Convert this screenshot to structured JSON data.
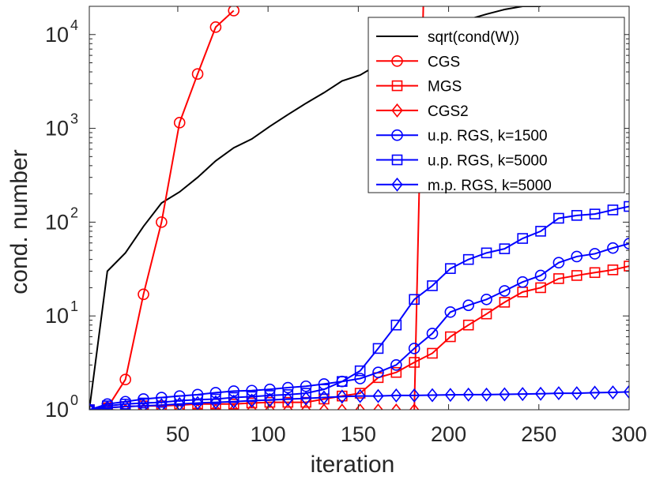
{
  "chart_data": {
    "type": "line",
    "xlabel": "iteration",
    "ylabel": "cond. number",
    "xlim": [
      1,
      300
    ],
    "ylim": [
      1,
      20000
    ],
    "y_scale": "log",
    "x_ticks": [
      50,
      100,
      150,
      200,
      250,
      300
    ],
    "y_ticks": [
      {
        "value": 1,
        "base": "10",
        "exp": "0"
      },
      {
        "value": 10,
        "base": "10",
        "exp": "1"
      },
      {
        "value": 100,
        "base": "10",
        "exp": "2"
      },
      {
        "value": 1000,
        "base": "10",
        "exp": "3"
      },
      {
        "value": 10000,
        "base": "10",
        "exp": "4"
      }
    ],
    "grid": false,
    "legend_position": "top-right",
    "series": [
      {
        "name": "sqrt(cond(W))",
        "color": "#000000",
        "marker": "none",
        "x": [
          1,
          11,
          21,
          31,
          41,
          51,
          61,
          71,
          81,
          91,
          101,
          111,
          121,
          131,
          141,
          151,
          161,
          171,
          181,
          191,
          201,
          211,
          221,
          231,
          241,
          251
        ],
        "y": [
          1,
          30,
          47,
          90,
          160,
          210,
          300,
          450,
          620,
          770,
          1050,
          1400,
          1850,
          2400,
          3200,
          3700,
          4800,
          6200,
          7300,
          10000,
          12000,
          14500,
          16500,
          18500,
          20000,
          20000
        ]
      },
      {
        "name": "CGS",
        "color": "#ff0000",
        "marker": "circle",
        "x": [
          1,
          11,
          21,
          31,
          41,
          51,
          61,
          71,
          81
        ],
        "y": [
          1,
          1.05,
          2.1,
          17,
          100,
          1150,
          3800,
          12000,
          18000
        ]
      },
      {
        "name": "MGS",
        "color": "#ff0000",
        "marker": "square",
        "x": [
          1,
          11,
          21,
          31,
          41,
          51,
          61,
          71,
          81,
          91,
          101,
          111,
          121,
          131,
          141,
          151,
          161,
          171,
          181,
          191,
          201,
          211,
          221,
          231,
          241,
          251,
          261,
          271,
          281,
          291,
          300
        ],
        "y": [
          1,
          1.05,
          1.08,
          1.1,
          1.1,
          1.12,
          1.15,
          1.15,
          1.15,
          1.18,
          1.2,
          1.2,
          1.2,
          1.3,
          1.4,
          1.5,
          2.2,
          2.5,
          3.2,
          4,
          6,
          8,
          10.5,
          14,
          18,
          20,
          25,
          27,
          29,
          31,
          34
        ]
      },
      {
        "name": "CGS2",
        "color": "#ff0000",
        "marker": "diamond",
        "x": [
          1,
          11,
          21,
          31,
          41,
          51,
          61,
          71,
          81,
          91,
          101,
          111,
          121,
          131,
          141,
          151,
          161,
          171,
          181,
          186
        ],
        "y": [
          1,
          1,
          0.98,
          0.98,
          0.98,
          0.98,
          0.98,
          0.98,
          0.98,
          0.98,
          0.98,
          0.98,
          0.98,
          0.98,
          0.98,
          0.98,
          0.98,
          0.98,
          0.98,
          20000
        ]
      },
      {
        "name": "u.p. RGS, k=1500",
        "color": "#0000ff",
        "marker": "circle",
        "x": [
          1,
          11,
          21,
          31,
          41,
          51,
          61,
          71,
          81,
          91,
          101,
          111,
          121,
          131,
          141,
          151,
          161,
          171,
          181,
          191,
          201,
          211,
          221,
          231,
          241,
          251,
          261,
          271,
          281,
          291,
          300
        ],
        "y": [
          1,
          1.15,
          1.22,
          1.3,
          1.35,
          1.4,
          1.45,
          1.52,
          1.58,
          1.6,
          1.65,
          1.72,
          1.78,
          1.88,
          2,
          2.15,
          2.5,
          3,
          4.5,
          6.5,
          11,
          13,
          15,
          18.5,
          23,
          27,
          37,
          43,
          46,
          53,
          59
        ]
      },
      {
        "name": "u.p. RGS, k=5000",
        "color": "#0000ff",
        "marker": "square",
        "x": [
          1,
          11,
          21,
          31,
          41,
          51,
          61,
          71,
          81,
          91,
          101,
          111,
          121,
          131,
          141,
          151,
          161,
          171,
          181,
          191,
          201,
          211,
          221,
          231,
          241,
          251,
          261,
          271,
          281,
          291,
          300
        ],
        "y": [
          1,
          1.1,
          1.15,
          1.18,
          1.2,
          1.25,
          1.28,
          1.3,
          1.35,
          1.38,
          1.42,
          1.45,
          1.5,
          1.65,
          2,
          2.6,
          4.5,
          8,
          15,
          21,
          32,
          40,
          47,
          52,
          67,
          80,
          110,
          118,
          122,
          135,
          147
        ]
      },
      {
        "name": "m.p. RGS, k=5000",
        "color": "#0000ff",
        "marker": "diamond",
        "x": [
          1,
          11,
          21,
          31,
          41,
          51,
          61,
          71,
          81,
          91,
          101,
          111,
          121,
          131,
          141,
          151,
          161,
          171,
          181,
          191,
          201,
          211,
          221,
          231,
          241,
          251,
          261,
          271,
          281,
          291,
          300
        ],
        "y": [
          1,
          1.05,
          1.08,
          1.1,
          1.12,
          1.15,
          1.18,
          1.2,
          1.22,
          1.25,
          1.27,
          1.3,
          1.32,
          1.35,
          1.38,
          1.4,
          1.4,
          1.42,
          1.42,
          1.43,
          1.44,
          1.45,
          1.45,
          1.46,
          1.47,
          1.48,
          1.5,
          1.5,
          1.52,
          1.53,
          1.55
        ]
      }
    ]
  }
}
